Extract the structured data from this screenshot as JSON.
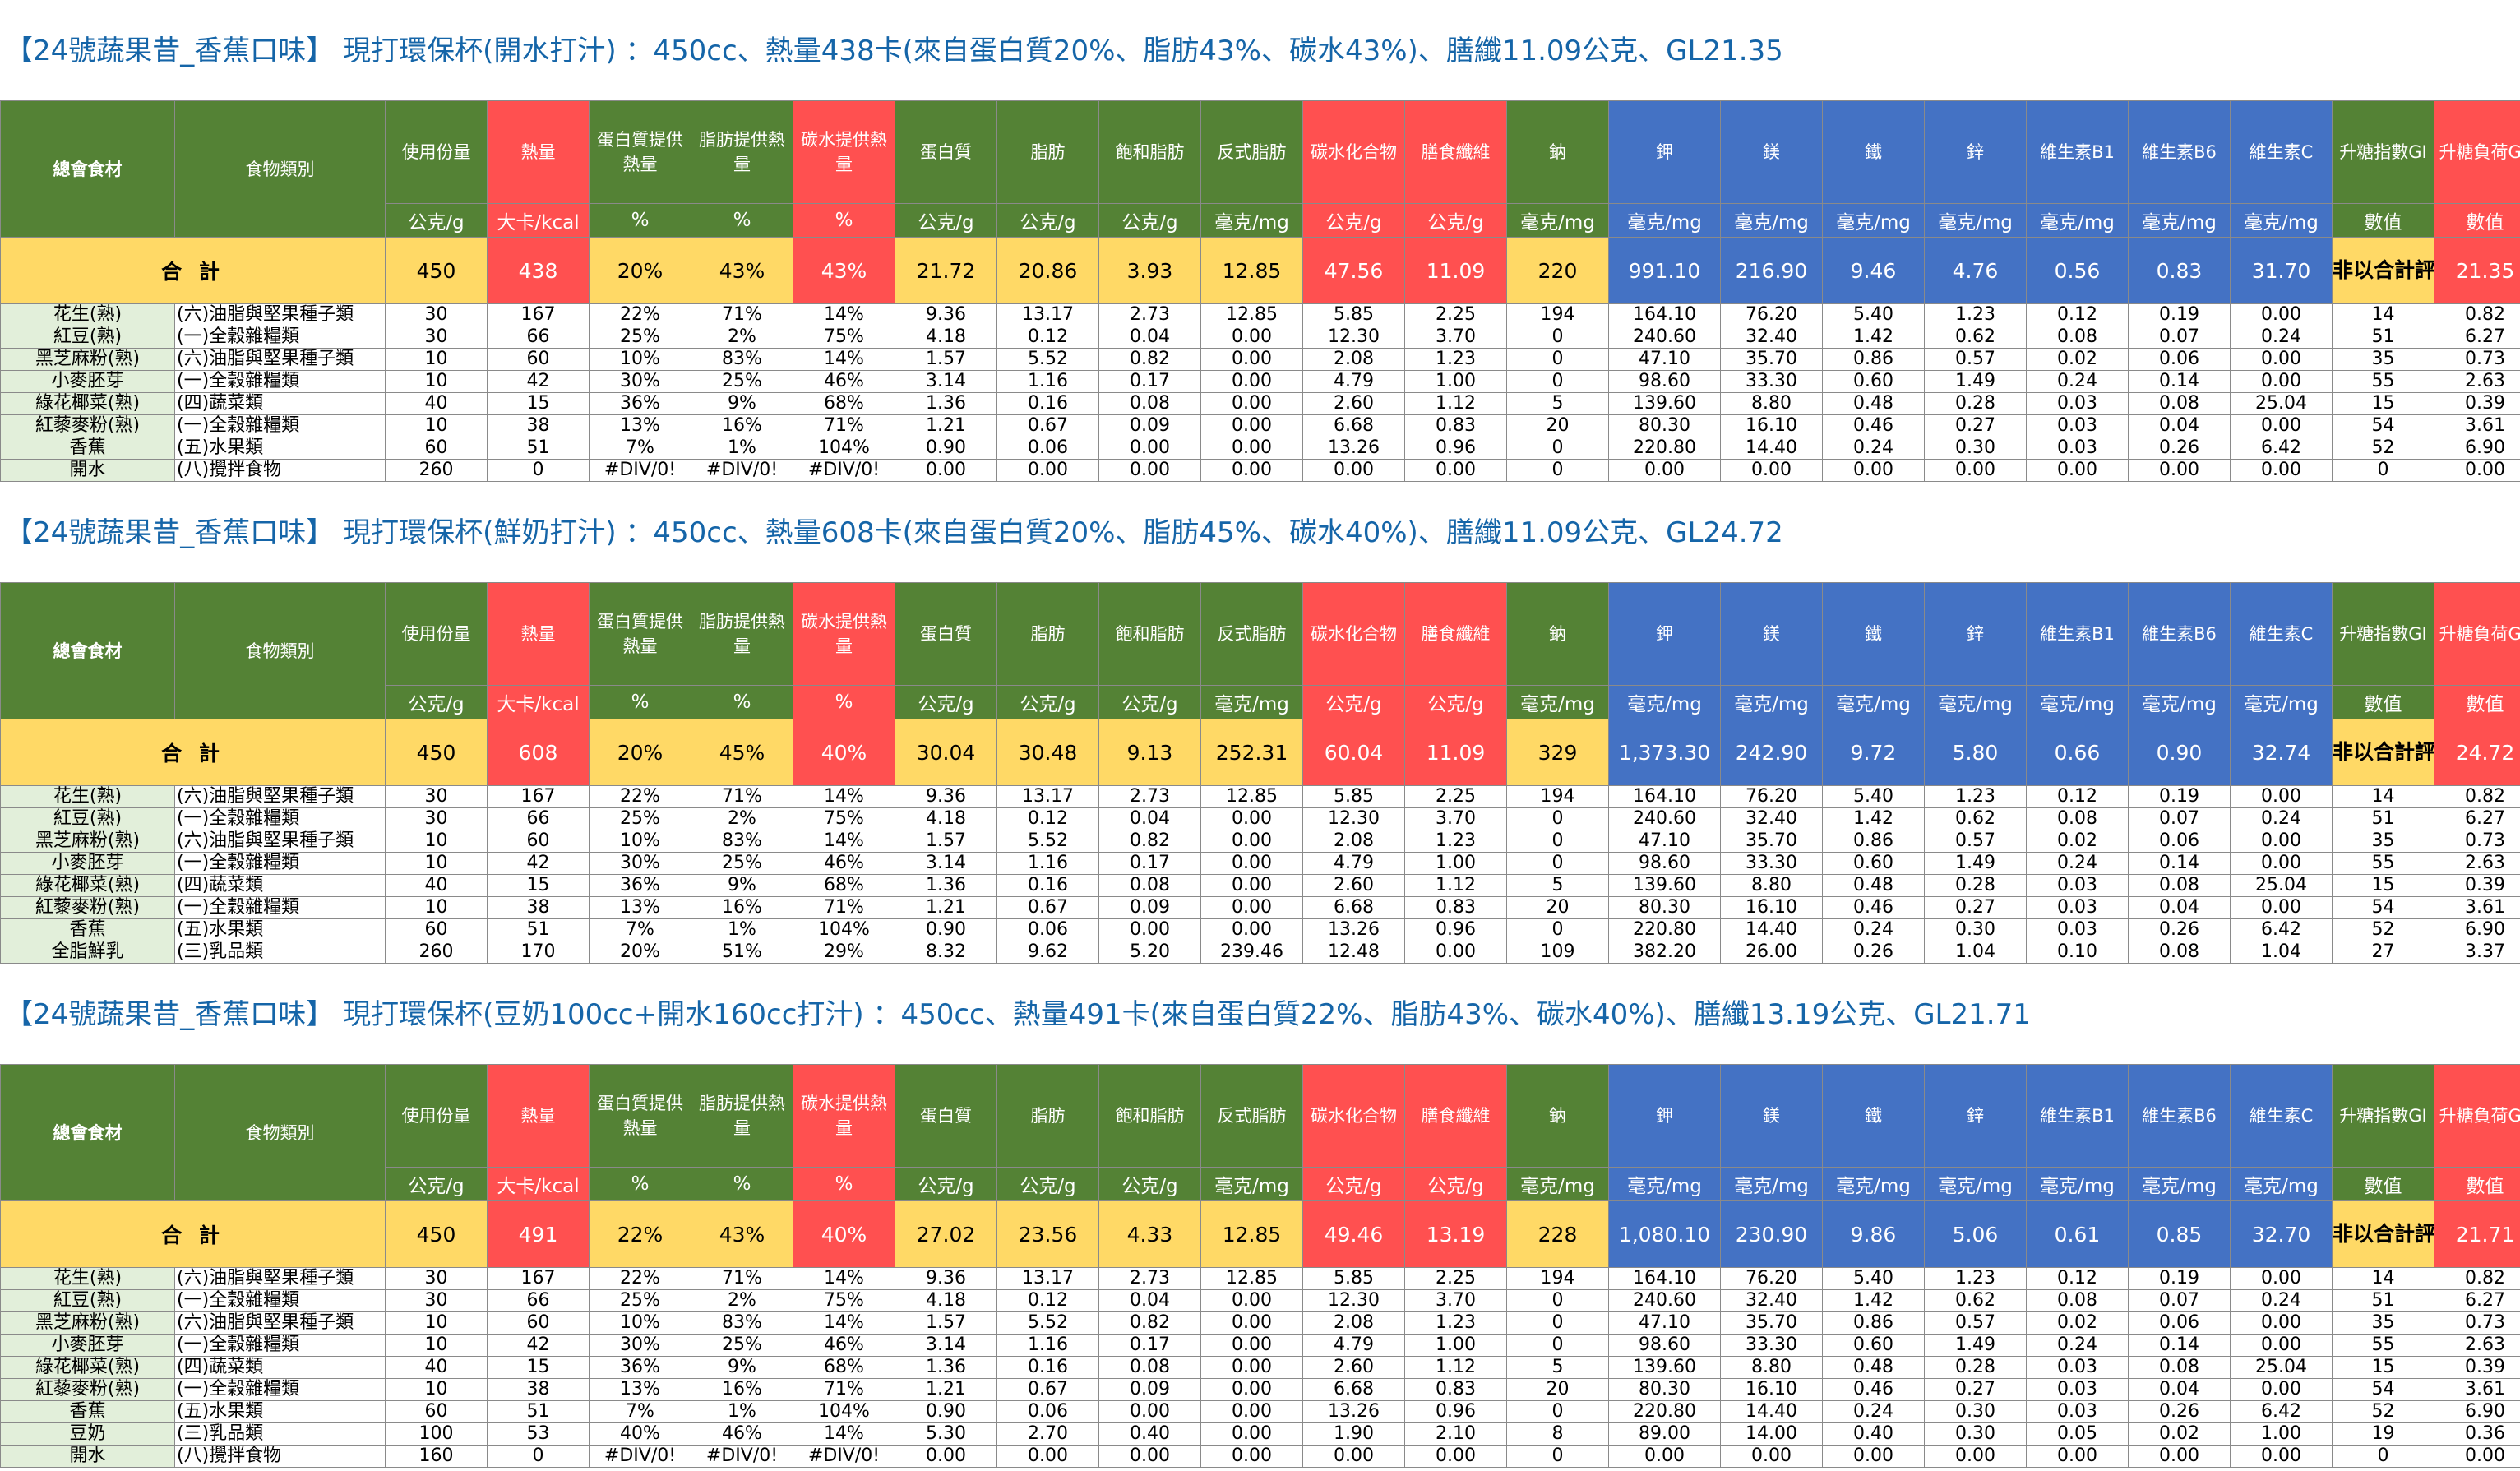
{
  "headers": {
    "name": "總會食材",
    "category": "食物類別",
    "portion": "使用份量",
    "kcal": "熱量",
    "protein_pct": "蛋白質提供熱量",
    "fat_pct": "脂肪提供熱量",
    "carb_pct": "碳水提供熱量",
    "protein": "蛋白質",
    "fat": "脂肪",
    "satfat": "飽和脂肪",
    "transfat": "反式脂肪",
    "carb": "碳水化合物",
    "fiber": "膳食纖維",
    "sodium": "鈉",
    "potassium": "鉀",
    "magnesium": "鎂",
    "iron": "鐵",
    "zinc": "鋅",
    "b1": "維生素B1",
    "b6": "維生素B6",
    "vc": "維生素C",
    "gi": "升糖指數GI",
    "gl": "升糖負荷GL"
  },
  "units": [
    "公克/g",
    "大卡/kcal",
    "%",
    "%",
    "%",
    "公克/g",
    "公克/g",
    "公克/g",
    "毫克/mg",
    "公克/g",
    "公克/g",
    "毫克/mg",
    "毫克/mg",
    "毫克/mg",
    "毫克/mg",
    "毫克/mg",
    "毫克/mg",
    "毫克/mg",
    "毫克/mg",
    "數值",
    "數值"
  ],
  "total_label": "合 計",
  "gi_total_note": "非以合計評量",
  "sections": [
    {
      "title": "【24號蔬果昔_香蕉口味】 現打環保杯(開水打汁) ：450cc、熱量438卡(來自蛋白質20%、脂肪43%、碳水43%)、膳纖11.09公克、GL21.35",
      "totals": [
        "450",
        "438",
        "20%",
        "43%",
        "43%",
        "21.72",
        "20.86",
        "3.93",
        "12.85",
        "47.56",
        "11.09",
        "220",
        "991.10",
        "216.90",
        "9.46",
        "4.76",
        "0.56",
        "0.83",
        "31.70",
        "21.35"
      ],
      "rows": [
        {
          "name": "花生(熟)",
          "cat": "(六)油脂與堅果種子類",
          "v": [
            "30",
            "167",
            "22%",
            "71%",
            "14%",
            "9.36",
            "13.17",
            "2.73",
            "12.85",
            "5.85",
            "2.25",
            "194",
            "164.10",
            "76.20",
            "5.40",
            "1.23",
            "0.12",
            "0.19",
            "0.00",
            "14",
            "0.82"
          ]
        },
        {
          "name": "紅豆(熟)",
          "cat": "(一)全穀雜糧類",
          "v": [
            "30",
            "66",
            "25%",
            "2%",
            "75%",
            "4.18",
            "0.12",
            "0.04",
            "0.00",
            "12.30",
            "3.70",
            "0",
            "240.60",
            "32.40",
            "1.42",
            "0.62",
            "0.08",
            "0.07",
            "0.24",
            "51",
            "6.27"
          ]
        },
        {
          "name": "黑芝麻粉(熟)",
          "cat": "(六)油脂與堅果種子類",
          "v": [
            "10",
            "60",
            "10%",
            "83%",
            "14%",
            "1.57",
            "5.52",
            "0.82",
            "0.00",
            "2.08",
            "1.23",
            "0",
            "47.10",
            "35.70",
            "0.86",
            "0.57",
            "0.02",
            "0.06",
            "0.00",
            "35",
            "0.73"
          ]
        },
        {
          "name": "小麥胚芽",
          "cat": "(一)全穀雜糧類",
          "v": [
            "10",
            "42",
            "30%",
            "25%",
            "46%",
            "3.14",
            "1.16",
            "0.17",
            "0.00",
            "4.79",
            "1.00",
            "0",
            "98.60",
            "33.30",
            "0.60",
            "1.49",
            "0.24",
            "0.14",
            "0.00",
            "55",
            "2.63"
          ]
        },
        {
          "name": "綠花椰菜(熟)",
          "cat": "(四)蔬菜類",
          "v": [
            "40",
            "15",
            "36%",
            "9%",
            "68%",
            "1.36",
            "0.16",
            "0.08",
            "0.00",
            "2.60",
            "1.12",
            "5",
            "139.60",
            "8.80",
            "0.48",
            "0.28",
            "0.03",
            "0.08",
            "25.04",
            "15",
            "0.39"
          ]
        },
        {
          "name": "紅藜麥粉(熟)",
          "cat": "(一)全穀雜糧類",
          "v": [
            "10",
            "38",
            "13%",
            "16%",
            "71%",
            "1.21",
            "0.67",
            "0.09",
            "0.00",
            "6.68",
            "0.83",
            "20",
            "80.30",
            "16.10",
            "0.46",
            "0.27",
            "0.03",
            "0.04",
            "0.00",
            "54",
            "3.61"
          ]
        },
        {
          "name": "香蕉",
          "cat": "(五)水果類",
          "v": [
            "60",
            "51",
            "7%",
            "1%",
            "104%",
            "0.90",
            "0.06",
            "0.00",
            "0.00",
            "13.26",
            "0.96",
            "0",
            "220.80",
            "14.40",
            "0.24",
            "0.30",
            "0.03",
            "0.26",
            "6.42",
            "52",
            "6.90"
          ]
        },
        {
          "name": "開水",
          "cat": "(八)攪拌食物",
          "v": [
            "260",
            "0",
            "#DIV/0!",
            "#DIV/0!",
            "#DIV/0!",
            "0.00",
            "0.00",
            "0.00",
            "0.00",
            "0.00",
            "0.00",
            "0",
            "0.00",
            "0.00",
            "0.00",
            "0.00",
            "0.00",
            "0.00",
            "0.00",
            "0",
            "0.00"
          ]
        }
      ]
    },
    {
      "title": "【24號蔬果昔_香蕉口味】 現打環保杯(鮮奶打汁) ：450cc、熱量608卡(來自蛋白質20%、脂肪45%、碳水40%)、膳纖11.09公克、GL24.72",
      "totals": [
        "450",
        "608",
        "20%",
        "45%",
        "40%",
        "30.04",
        "30.48",
        "9.13",
        "252.31",
        "60.04",
        "11.09",
        "329",
        "1,373.30",
        "242.90",
        "9.72",
        "5.80",
        "0.66",
        "0.90",
        "32.74",
        "24.72"
      ],
      "rows": [
        {
          "name": "花生(熟)",
          "cat": "(六)油脂與堅果種子類",
          "v": [
            "30",
            "167",
            "22%",
            "71%",
            "14%",
            "9.36",
            "13.17",
            "2.73",
            "12.85",
            "5.85",
            "2.25",
            "194",
            "164.10",
            "76.20",
            "5.40",
            "1.23",
            "0.12",
            "0.19",
            "0.00",
            "14",
            "0.82"
          ]
        },
        {
          "name": "紅豆(熟)",
          "cat": "(一)全穀雜糧類",
          "v": [
            "30",
            "66",
            "25%",
            "2%",
            "75%",
            "4.18",
            "0.12",
            "0.04",
            "0.00",
            "12.30",
            "3.70",
            "0",
            "240.60",
            "32.40",
            "1.42",
            "0.62",
            "0.08",
            "0.07",
            "0.24",
            "51",
            "6.27"
          ]
        },
        {
          "name": "黑芝麻粉(熟)",
          "cat": "(六)油脂與堅果種子類",
          "v": [
            "10",
            "60",
            "10%",
            "83%",
            "14%",
            "1.57",
            "5.52",
            "0.82",
            "0.00",
            "2.08",
            "1.23",
            "0",
            "47.10",
            "35.70",
            "0.86",
            "0.57",
            "0.02",
            "0.06",
            "0.00",
            "35",
            "0.73"
          ]
        },
        {
          "name": "小麥胚芽",
          "cat": "(一)全穀雜糧類",
          "v": [
            "10",
            "42",
            "30%",
            "25%",
            "46%",
            "3.14",
            "1.16",
            "0.17",
            "0.00",
            "4.79",
            "1.00",
            "0",
            "98.60",
            "33.30",
            "0.60",
            "1.49",
            "0.24",
            "0.14",
            "0.00",
            "55",
            "2.63"
          ]
        },
        {
          "name": "綠花椰菜(熟)",
          "cat": "(四)蔬菜類",
          "v": [
            "40",
            "15",
            "36%",
            "9%",
            "68%",
            "1.36",
            "0.16",
            "0.08",
            "0.00",
            "2.60",
            "1.12",
            "5",
            "139.60",
            "8.80",
            "0.48",
            "0.28",
            "0.03",
            "0.08",
            "25.04",
            "15",
            "0.39"
          ]
        },
        {
          "name": "紅藜麥粉(熟)",
          "cat": "(一)全穀雜糧類",
          "v": [
            "10",
            "38",
            "13%",
            "16%",
            "71%",
            "1.21",
            "0.67",
            "0.09",
            "0.00",
            "6.68",
            "0.83",
            "20",
            "80.30",
            "16.10",
            "0.46",
            "0.27",
            "0.03",
            "0.04",
            "0.00",
            "54",
            "3.61"
          ]
        },
        {
          "name": "香蕉",
          "cat": "(五)水果類",
          "v": [
            "60",
            "51",
            "7%",
            "1%",
            "104%",
            "0.90",
            "0.06",
            "0.00",
            "0.00",
            "13.26",
            "0.96",
            "0",
            "220.80",
            "14.40",
            "0.24",
            "0.30",
            "0.03",
            "0.26",
            "6.42",
            "52",
            "6.90"
          ]
        },
        {
          "name": "全脂鮮乳",
          "cat": "(三)乳品類",
          "v": [
            "260",
            "170",
            "20%",
            "51%",
            "29%",
            "8.32",
            "9.62",
            "5.20",
            "239.46",
            "12.48",
            "0.00",
            "109",
            "382.20",
            "26.00",
            "0.26",
            "1.04",
            "0.10",
            "0.08",
            "1.04",
            "27",
            "3.37"
          ]
        }
      ]
    },
    {
      "title": "【24號蔬果昔_香蕉口味】 現打環保杯(豆奶100cc+開水160cc打汁) ：450cc、熱量491卡(來自蛋白質22%、脂肪43%、碳水40%)、膳纖13.19公克、GL21.71",
      "totals": [
        "450",
        "491",
        "22%",
        "43%",
        "40%",
        "27.02",
        "23.56",
        "4.33",
        "12.85",
        "49.46",
        "13.19",
        "228",
        "1,080.10",
        "230.90",
        "9.86",
        "5.06",
        "0.61",
        "0.85",
        "32.70",
        "21.71"
      ],
      "rows": [
        {
          "name": "花生(熟)",
          "cat": "(六)油脂與堅果種子類",
          "v": [
            "30",
            "167",
            "22%",
            "71%",
            "14%",
            "9.36",
            "13.17",
            "2.73",
            "12.85",
            "5.85",
            "2.25",
            "194",
            "164.10",
            "76.20",
            "5.40",
            "1.23",
            "0.12",
            "0.19",
            "0.00",
            "14",
            "0.82"
          ]
        },
        {
          "name": "紅豆(熟)",
          "cat": "(一)全穀雜糧類",
          "v": [
            "30",
            "66",
            "25%",
            "2%",
            "75%",
            "4.18",
            "0.12",
            "0.04",
            "0.00",
            "12.30",
            "3.70",
            "0",
            "240.60",
            "32.40",
            "1.42",
            "0.62",
            "0.08",
            "0.07",
            "0.24",
            "51",
            "6.27"
          ]
        },
        {
          "name": "黑芝麻粉(熟)",
          "cat": "(六)油脂與堅果種子類",
          "v": [
            "10",
            "60",
            "10%",
            "83%",
            "14%",
            "1.57",
            "5.52",
            "0.82",
            "0.00",
            "2.08",
            "1.23",
            "0",
            "47.10",
            "35.70",
            "0.86",
            "0.57",
            "0.02",
            "0.06",
            "0.00",
            "35",
            "0.73"
          ]
        },
        {
          "name": "小麥胚芽",
          "cat": "(一)全穀雜糧類",
          "v": [
            "10",
            "42",
            "30%",
            "25%",
            "46%",
            "3.14",
            "1.16",
            "0.17",
            "0.00",
            "4.79",
            "1.00",
            "0",
            "98.60",
            "33.30",
            "0.60",
            "1.49",
            "0.24",
            "0.14",
            "0.00",
            "55",
            "2.63"
          ]
        },
        {
          "name": "綠花椰菜(熟)",
          "cat": "(四)蔬菜類",
          "v": [
            "40",
            "15",
            "36%",
            "9%",
            "68%",
            "1.36",
            "0.16",
            "0.08",
            "0.00",
            "2.60",
            "1.12",
            "5",
            "139.60",
            "8.80",
            "0.48",
            "0.28",
            "0.03",
            "0.08",
            "25.04",
            "15",
            "0.39"
          ]
        },
        {
          "name": "紅藜麥粉(熟)",
          "cat": "(一)全穀雜糧類",
          "v": [
            "10",
            "38",
            "13%",
            "16%",
            "71%",
            "1.21",
            "0.67",
            "0.09",
            "0.00",
            "6.68",
            "0.83",
            "20",
            "80.30",
            "16.10",
            "0.46",
            "0.27",
            "0.03",
            "0.04",
            "0.00",
            "54",
            "3.61"
          ]
        },
        {
          "name": "香蕉",
          "cat": "(五)水果類",
          "v": [
            "60",
            "51",
            "7%",
            "1%",
            "104%",
            "0.90",
            "0.06",
            "0.00",
            "0.00",
            "13.26",
            "0.96",
            "0",
            "220.80",
            "14.40",
            "0.24",
            "0.30",
            "0.03",
            "0.26",
            "6.42",
            "52",
            "6.90"
          ]
        },
        {
          "name": "豆奶",
          "cat": "(三)乳品類",
          "v": [
            "100",
            "53",
            "40%",
            "46%",
            "14%",
            "5.30",
            "2.70",
            "0.40",
            "0.00",
            "1.90",
            "2.10",
            "8",
            "89.00",
            "14.00",
            "0.40",
            "0.30",
            "0.05",
            "0.02",
            "1.00",
            "19",
            "0.36"
          ]
        },
        {
          "name": "開水",
          "cat": "(八)攪拌食物",
          "v": [
            "160",
            "0",
            "#DIV/0!",
            "#DIV/0!",
            "#DIV/0!",
            "0.00",
            "0.00",
            "0.00",
            "0.00",
            "0.00",
            "0.00",
            "0",
            "0.00",
            "0.00",
            "0.00",
            "0.00",
            "0.00",
            "0.00",
            "0.00",
            "0",
            "0.00"
          ]
        }
      ]
    }
  ]
}
